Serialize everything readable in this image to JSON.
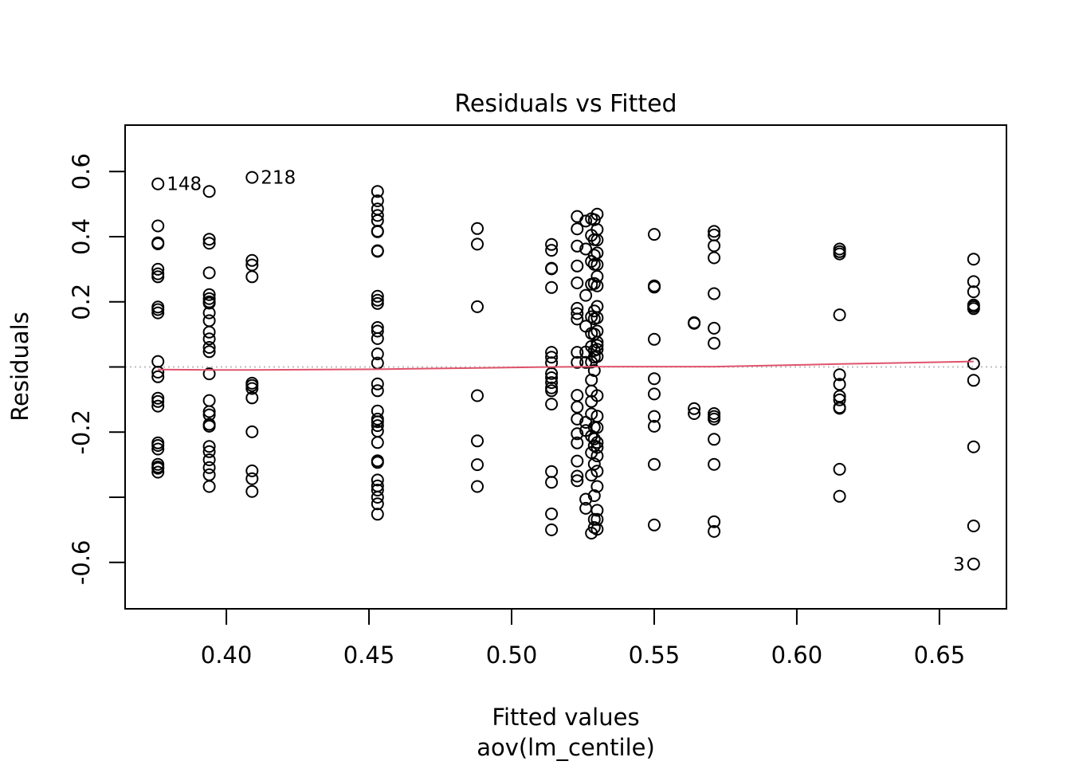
{
  "chart_data": {
    "type": "scatter",
    "title": "Residuals vs Fitted",
    "xlabel": "Fitted values",
    "xsublabel": "aov(lm_centile)",
    "ylabel": "Residuals",
    "xlim": [
      0.3645,
      0.6735
    ],
    "ylim": [
      -0.7424,
      0.7424
    ],
    "xticks": [
      {
        "value": 0.4,
        "label": "0.40"
      },
      {
        "value": 0.45,
        "label": "0.45"
      },
      {
        "value": 0.5,
        "label": "0.50"
      },
      {
        "value": 0.55,
        "label": "0.55"
      },
      {
        "value": 0.6,
        "label": "0.60"
      },
      {
        "value": 0.65,
        "label": "0.65"
      }
    ],
    "yticks": [
      {
        "value": -0.6,
        "label": "-0.6"
      },
      {
        "value": -0.4,
        "label": ""
      },
      {
        "value": -0.2,
        "label": "-0.2"
      },
      {
        "value": 0.0,
        "label": ""
      },
      {
        "value": 0.2,
        "label": "0.2"
      },
      {
        "value": 0.4,
        "label": "0.4"
      },
      {
        "value": 0.6,
        "label": "0.6"
      }
    ],
    "reference_line": {
      "y": 0,
      "color": "#bebebe",
      "style": "dotted"
    },
    "smooth_line": {
      "color": "#df536b",
      "points": [
        [
          0.376,
          -0.008
        ],
        [
          0.394,
          -0.009
        ],
        [
          0.409,
          -0.009
        ],
        [
          0.453,
          -0.007
        ],
        [
          0.488,
          -0.003
        ],
        [
          0.514,
          0.0
        ],
        [
          0.53,
          0.001
        ],
        [
          0.55,
          0.001
        ],
        [
          0.571,
          0.001
        ],
        [
          0.615,
          0.009
        ],
        [
          0.662,
          0.017
        ]
      ]
    },
    "point_color": "#000000",
    "points": [
      [
        0.376,
        0.562
      ],
      [
        0.376,
        0.433
      ],
      [
        0.376,
        0.381
      ],
      [
        0.376,
        0.378
      ],
      [
        0.376,
        0.3
      ],
      [
        0.376,
        0.286
      ],
      [
        0.376,
        0.277
      ],
      [
        0.376,
        0.184
      ],
      [
        0.376,
        0.176
      ],
      [
        0.376,
        0.166
      ],
      [
        0.376,
        0.017
      ],
      [
        0.376,
        -0.016
      ],
      [
        0.376,
        -0.03
      ],
      [
        0.376,
        -0.096
      ],
      [
        0.376,
        -0.106
      ],
      [
        0.376,
        -0.12
      ],
      [
        0.376,
        -0.233
      ],
      [
        0.376,
        -0.241
      ],
      [
        0.376,
        -0.252
      ],
      [
        0.376,
        -0.299
      ],
      [
        0.376,
        -0.307
      ],
      [
        0.376,
        -0.311
      ],
      [
        0.376,
        -0.323
      ],
      [
        0.394,
        0.539
      ],
      [
        0.394,
        0.392
      ],
      [
        0.394,
        0.38
      ],
      [
        0.394,
        0.289
      ],
      [
        0.394,
        0.222
      ],
      [
        0.394,
        0.21
      ],
      [
        0.394,
        0.2
      ],
      [
        0.394,
        0.196
      ],
      [
        0.394,
        0.166
      ],
      [
        0.394,
        0.142
      ],
      [
        0.394,
        0.107
      ],
      [
        0.394,
        0.086
      ],
      [
        0.394,
        0.06
      ],
      [
        0.394,
        0.047
      ],
      [
        0.394,
        -0.021
      ],
      [
        0.394,
        -0.103
      ],
      [
        0.394,
        -0.137
      ],
      [
        0.394,
        -0.147
      ],
      [
        0.394,
        -0.176
      ],
      [
        0.394,
        -0.182
      ],
      [
        0.394,
        -0.244
      ],
      [
        0.394,
        -0.26
      ],
      [
        0.394,
        -0.285
      ],
      [
        0.394,
        -0.309
      ],
      [
        0.394,
        -0.331
      ],
      [
        0.394,
        -0.367
      ],
      [
        0.409,
        0.582
      ],
      [
        0.409,
        0.327
      ],
      [
        0.409,
        0.313
      ],
      [
        0.409,
        0.277
      ],
      [
        0.409,
        -0.05
      ],
      [
        0.409,
        -0.057
      ],
      [
        0.409,
        -0.066
      ],
      [
        0.409,
        -0.095
      ],
      [
        0.409,
        -0.199
      ],
      [
        0.409,
        -0.319
      ],
      [
        0.409,
        -0.343
      ],
      [
        0.409,
        -0.382
      ],
      [
        0.453,
        0.539
      ],
      [
        0.453,
        0.51
      ],
      [
        0.453,
        0.485
      ],
      [
        0.453,
        0.465
      ],
      [
        0.453,
        0.449
      ],
      [
        0.453,
        0.417
      ],
      [
        0.453,
        0.415
      ],
      [
        0.453,
        0.357
      ],
      [
        0.453,
        0.355
      ],
      [
        0.453,
        0.217
      ],
      [
        0.453,
        0.205
      ],
      [
        0.453,
        0.195
      ],
      [
        0.453,
        0.121
      ],
      [
        0.453,
        0.11
      ],
      [
        0.453,
        0.087
      ],
      [
        0.453,
        0.04
      ],
      [
        0.453,
        0.012
      ],
      [
        0.453,
        -0.052
      ],
      [
        0.453,
        -0.073
      ],
      [
        0.453,
        -0.135
      ],
      [
        0.453,
        -0.16
      ],
      [
        0.453,
        -0.168
      ],
      [
        0.453,
        -0.18
      ],
      [
        0.453,
        -0.197
      ],
      [
        0.453,
        -0.232
      ],
      [
        0.453,
        -0.288
      ],
      [
        0.453,
        -0.293
      ],
      [
        0.453,
        -0.347
      ],
      [
        0.453,
        -0.365
      ],
      [
        0.453,
        -0.378
      ],
      [
        0.453,
        -0.4
      ],
      [
        0.453,
        -0.42
      ],
      [
        0.453,
        -0.452
      ],
      [
        0.488,
        0.425
      ],
      [
        0.488,
        0.377
      ],
      [
        0.488,
        0.185
      ],
      [
        0.488,
        -0.088
      ],
      [
        0.488,
        -0.227
      ],
      [
        0.488,
        -0.3
      ],
      [
        0.488,
        -0.367
      ],
      [
        0.514,
        0.376
      ],
      [
        0.514,
        0.358
      ],
      [
        0.514,
        0.303
      ],
      [
        0.514,
        0.301
      ],
      [
        0.514,
        0.244
      ],
      [
        0.514,
        0.045
      ],
      [
        0.514,
        0.03
      ],
      [
        0.514,
        0.013
      ],
      [
        0.514,
        -0.02
      ],
      [
        0.514,
        -0.033
      ],
      [
        0.514,
        -0.048
      ],
      [
        0.514,
        -0.064
      ],
      [
        0.514,
        -0.073
      ],
      [
        0.514,
        -0.114
      ],
      [
        0.514,
        -0.321
      ],
      [
        0.514,
        -0.354
      ],
      [
        0.514,
        -0.451
      ],
      [
        0.514,
        -0.5
      ],
      [
        0.523,
        0.462
      ],
      [
        0.523,
        0.424
      ],
      [
        0.523,
        0.371
      ],
      [
        0.523,
        0.31
      ],
      [
        0.523,
        0.258
      ],
      [
        0.523,
        0.18
      ],
      [
        0.523,
        0.164
      ],
      [
        0.523,
        0.147
      ],
      [
        0.523,
        0.045
      ],
      [
        0.523,
        0.014
      ],
      [
        0.523,
        -0.087
      ],
      [
        0.523,
        -0.123
      ],
      [
        0.523,
        -0.16
      ],
      [
        0.523,
        -0.205
      ],
      [
        0.523,
        -0.233
      ],
      [
        0.523,
        -0.289
      ],
      [
        0.523,
        -0.335
      ],
      [
        0.523,
        -0.349
      ],
      [
        0.526,
        0.448
      ],
      [
        0.526,
        0.362
      ],
      [
        0.526,
        0.22
      ],
      [
        0.526,
        0.125
      ],
      [
        0.526,
        0.046
      ],
      [
        0.526,
        0.014
      ],
      [
        0.526,
        -0.17
      ],
      [
        0.526,
        -0.195
      ],
      [
        0.526,
        -0.406
      ],
      [
        0.526,
        -0.434
      ],
      [
        0.528,
        0.455
      ],
      [
        0.528,
        0.404
      ],
      [
        0.528,
        0.324
      ],
      [
        0.528,
        0.254
      ],
      [
        0.528,
        0.154
      ],
      [
        0.528,
        0.103
      ],
      [
        0.528,
        0.063
      ],
      [
        0.528,
        0.015
      ],
      [
        0.528,
        -0.04
      ],
      [
        0.528,
        -0.074
      ],
      [
        0.528,
        -0.106
      ],
      [
        0.528,
        -0.144
      ],
      [
        0.528,
        -0.212
      ],
      [
        0.528,
        -0.263
      ],
      [
        0.528,
        -0.332
      ],
      [
        0.528,
        -0.51
      ],
      [
        0.529,
        0.452
      ],
      [
        0.529,
        0.391
      ],
      [
        0.529,
        0.343
      ],
      [
        0.529,
        0.315
      ],
      [
        0.529,
        0.256
      ],
      [
        0.529,
        0.172
      ],
      [
        0.529,
        0.148
      ],
      [
        0.529,
        0.101
      ],
      [
        0.529,
        0.051
      ],
      [
        0.529,
        0.03
      ],
      [
        0.529,
        -0.011
      ],
      [
        0.529,
        -0.185
      ],
      [
        0.529,
        -0.221
      ],
      [
        0.529,
        -0.242
      ],
      [
        0.529,
        -0.298
      ],
      [
        0.529,
        -0.395
      ],
      [
        0.529,
        -0.468
      ],
      [
        0.529,
        -0.493
      ],
      [
        0.53,
        0.469
      ],
      [
        0.53,
        0.422
      ],
      [
        0.53,
        0.39
      ],
      [
        0.53,
        0.35
      ],
      [
        0.53,
        0.314
      ],
      [
        0.53,
        0.278
      ],
      [
        0.53,
        0.249
      ],
      [
        0.53,
        0.186
      ],
      [
        0.53,
        0.151
      ],
      [
        0.53,
        0.11
      ],
      [
        0.53,
        0.076
      ],
      [
        0.53,
        0.066
      ],
      [
        0.53,
        0.054
      ],
      [
        0.53,
        0.032
      ],
      [
        0.53,
        -0.088
      ],
      [
        0.53,
        -0.151
      ],
      [
        0.53,
        -0.186
      ],
      [
        0.53,
        -0.232
      ],
      [
        0.53,
        -0.247
      ],
      [
        0.53,
        -0.273
      ],
      [
        0.53,
        -0.32
      ],
      [
        0.53,
        -0.367
      ],
      [
        0.53,
        -0.44
      ],
      [
        0.53,
        -0.468
      ],
      [
        0.53,
        -0.498
      ],
      [
        0.55,
        0.407
      ],
      [
        0.55,
        0.249
      ],
      [
        0.55,
        0.245
      ],
      [
        0.55,
        0.085
      ],
      [
        0.55,
        -0.036
      ],
      [
        0.55,
        -0.083
      ],
      [
        0.55,
        -0.152
      ],
      [
        0.55,
        -0.182
      ],
      [
        0.55,
        -0.299
      ],
      [
        0.55,
        -0.485
      ],
      [
        0.564,
        0.136
      ],
      [
        0.564,
        0.134
      ],
      [
        0.564,
        -0.128
      ],
      [
        0.564,
        -0.143
      ],
      [
        0.571,
        0.416
      ],
      [
        0.571,
        0.405
      ],
      [
        0.571,
        0.372
      ],
      [
        0.571,
        0.335
      ],
      [
        0.571,
        0.225
      ],
      [
        0.571,
        0.119
      ],
      [
        0.571,
        0.073
      ],
      [
        0.571,
        -0.143
      ],
      [
        0.571,
        -0.152
      ],
      [
        0.571,
        -0.16
      ],
      [
        0.571,
        -0.222
      ],
      [
        0.571,
        -0.299
      ],
      [
        0.571,
        -0.475
      ],
      [
        0.571,
        -0.505
      ],
      [
        0.615,
        0.362
      ],
      [
        0.615,
        0.354
      ],
      [
        0.615,
        0.347
      ],
      [
        0.615,
        0.16
      ],
      [
        0.615,
        -0.024
      ],
      [
        0.615,
        -0.053
      ],
      [
        0.615,
        -0.09
      ],
      [
        0.615,
        -0.101
      ],
      [
        0.615,
        -0.124
      ],
      [
        0.615,
        -0.127
      ],
      [
        0.615,
        -0.314
      ],
      [
        0.615,
        -0.397
      ],
      [
        0.662,
        0.331
      ],
      [
        0.662,
        0.262
      ],
      [
        0.662,
        0.231
      ],
      [
        0.662,
        0.19
      ],
      [
        0.662,
        0.185
      ],
      [
        0.662,
        0.179
      ],
      [
        0.662,
        0.01
      ],
      [
        0.662,
        -0.041
      ],
      [
        0.662,
        -0.245
      ],
      [
        0.662,
        -0.488
      ],
      [
        0.662,
        -0.605
      ]
    ],
    "annotations": [
      {
        "text": "148",
        "x": 0.376,
        "y": 0.562,
        "pos": "right"
      },
      {
        "text": "218",
        "x": 0.409,
        "y": 0.582,
        "pos": "right"
      },
      {
        "text": "3",
        "x": 0.662,
        "y": -0.605,
        "pos": "left"
      }
    ]
  }
}
